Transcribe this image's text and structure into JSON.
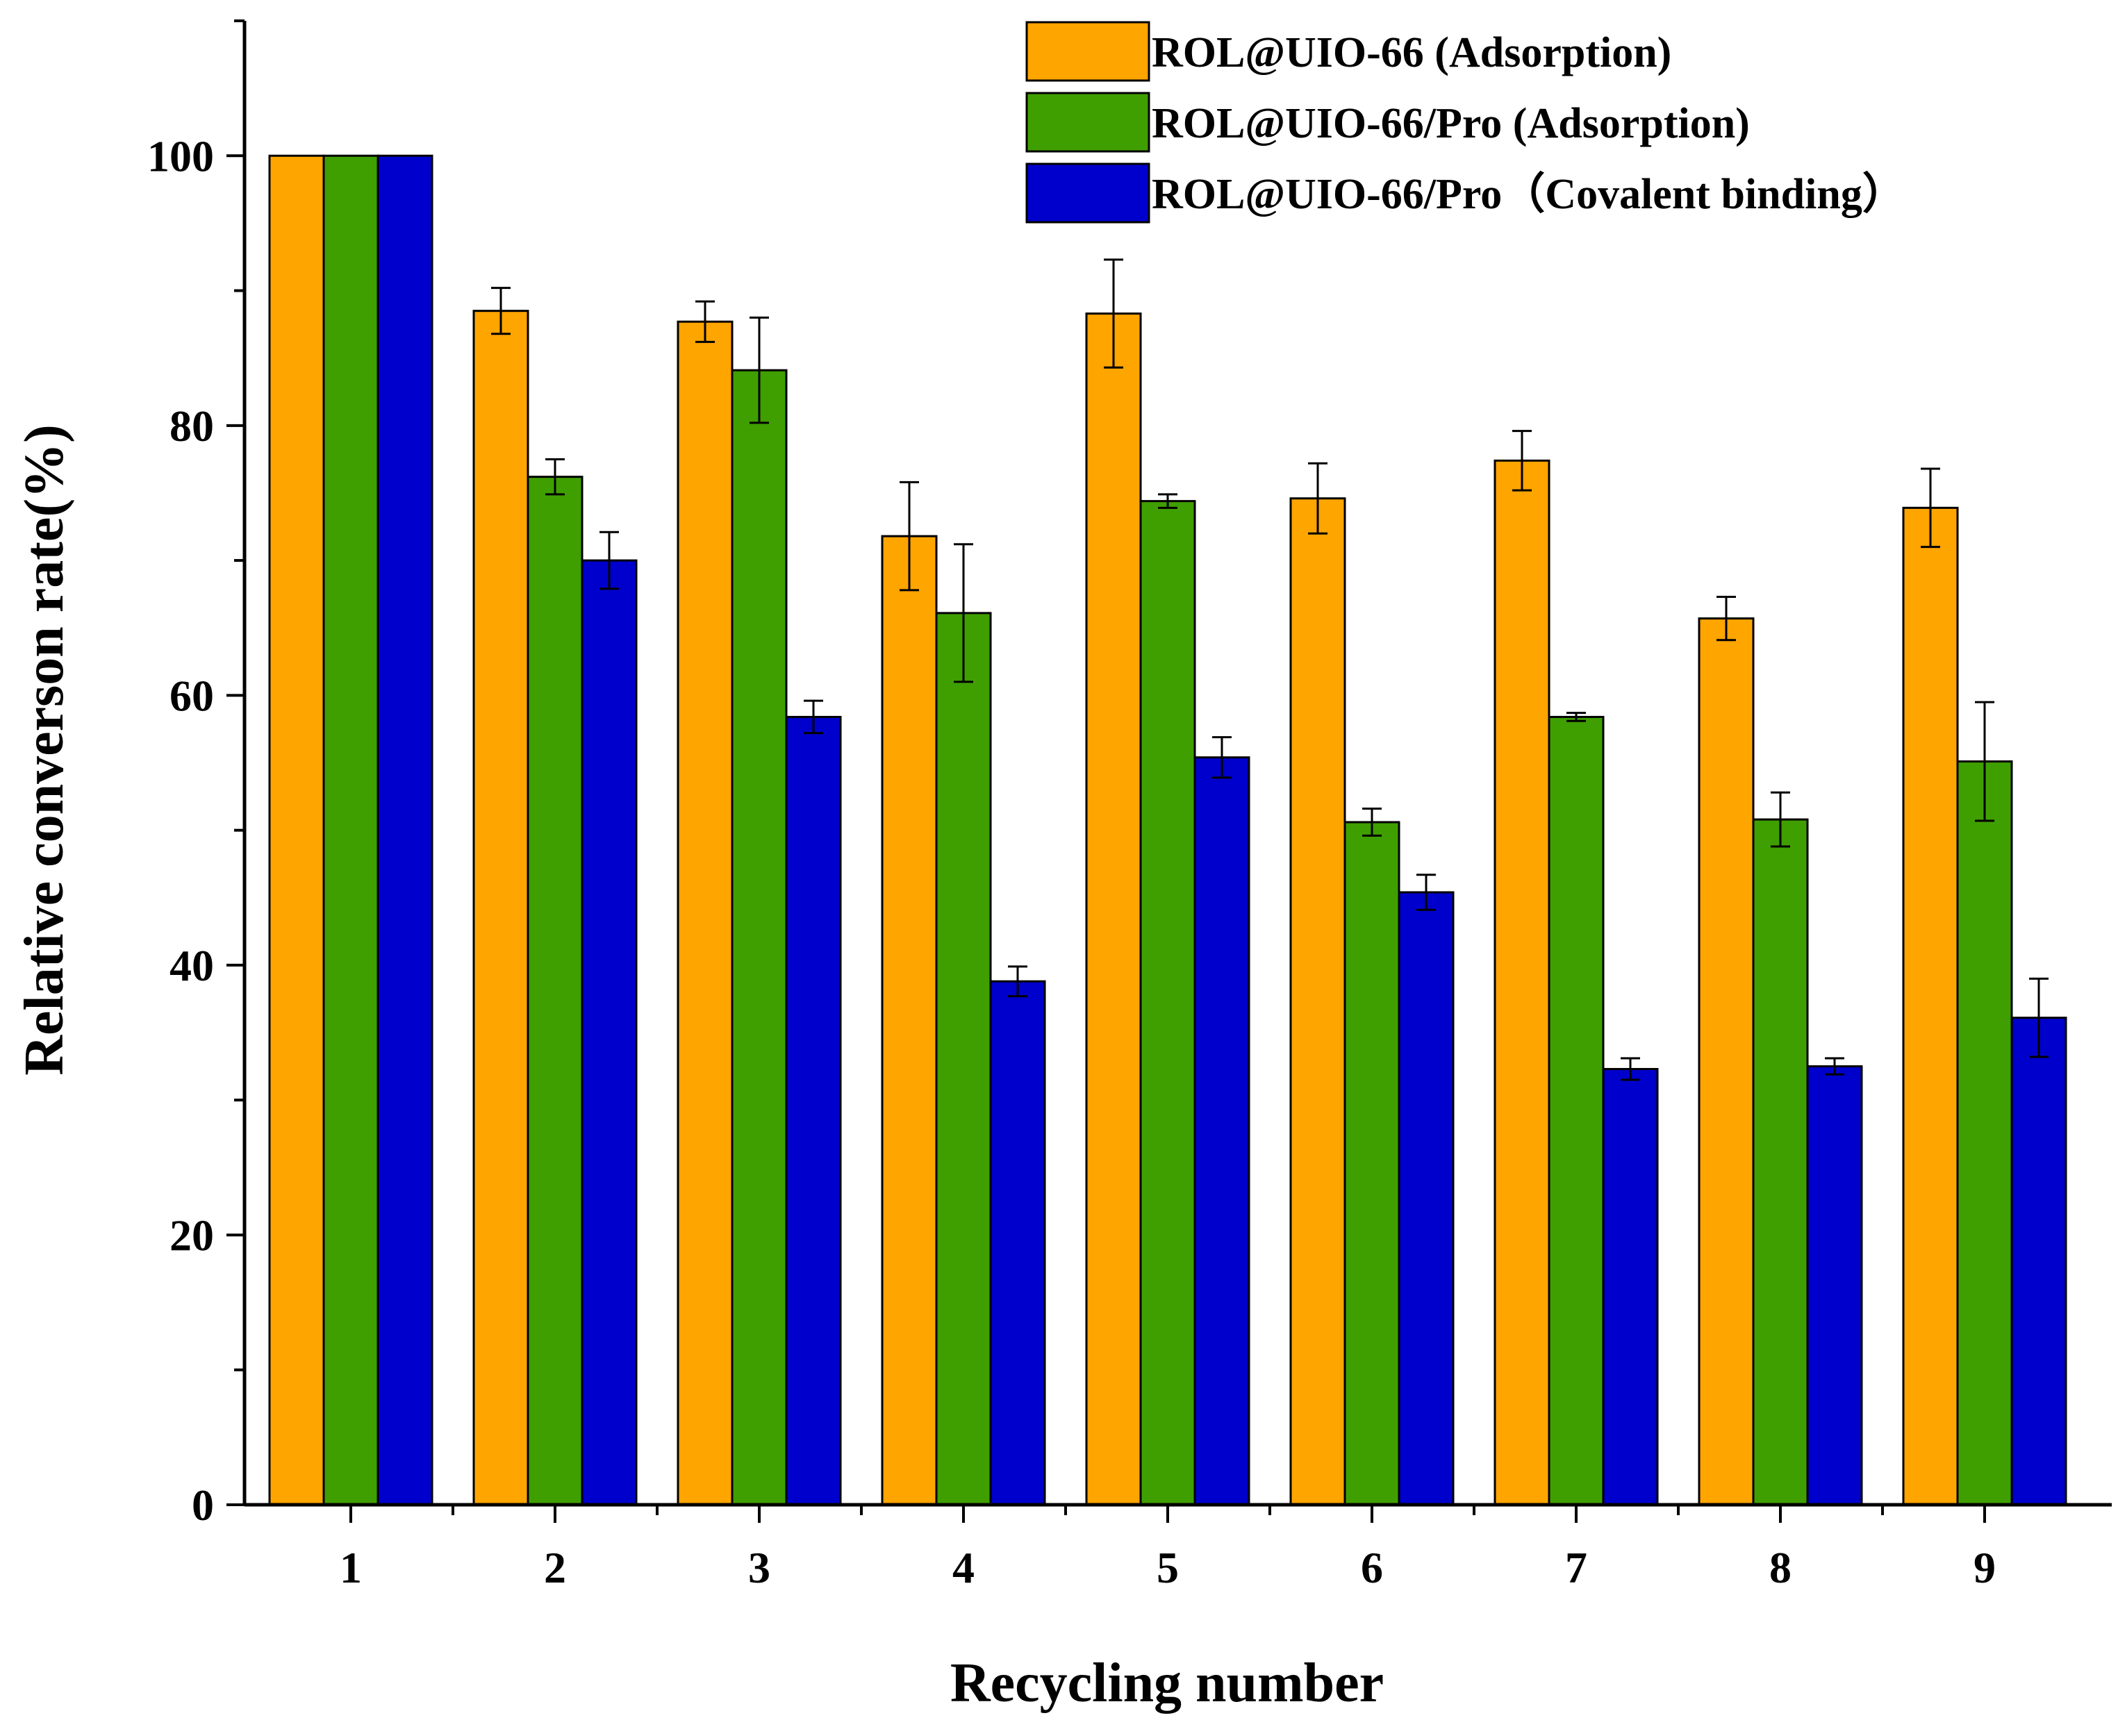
{
  "chart_data": {
    "type": "bar",
    "title": "",
    "xlabel": "Recycling number",
    "ylabel": "Relative converson rate(%)",
    "ylim": [
      0,
      110
    ],
    "yticks": [
      0,
      20,
      40,
      60,
      80,
      100
    ],
    "grid": false,
    "legend_position": "top-right",
    "categories": [
      "1",
      "2",
      "3",
      "4",
      "5",
      "6",
      "7",
      "8",
      "9"
    ],
    "series": [
      {
        "name": "ROL@UIO-66 (Adsorption)",
        "color": "#FFA500",
        "values": [
          100,
          88.5,
          87.7,
          71.8,
          88.3,
          74.6,
          77.4,
          65.7,
          73.9
        ],
        "errors": [
          0,
          1.7,
          1.5,
          4.0,
          4.0,
          2.6,
          2.2,
          1.6,
          2.9
        ]
      },
      {
        "name": "ROL@UIO-66/Pro (Adsorption)",
        "color": "#3F9F00",
        "values": [
          100,
          76.2,
          84.1,
          66.1,
          74.4,
          50.6,
          58.4,
          50.8,
          55.1
        ],
        "errors": [
          0,
          1.3,
          3.9,
          5.1,
          0.5,
          1.0,
          0.3,
          2.0,
          4.4
        ]
      },
      {
        "name": "ROL@UIO-66/Pro（Covalent binding）",
        "color": "#0000CC",
        "values": [
          100,
          70.0,
          58.4,
          38.8,
          55.4,
          45.4,
          32.3,
          32.5,
          36.1
        ],
        "errors": [
          0,
          2.1,
          1.2,
          1.1,
          1.5,
          1.3,
          0.8,
          0.6,
          2.9
        ]
      }
    ]
  }
}
